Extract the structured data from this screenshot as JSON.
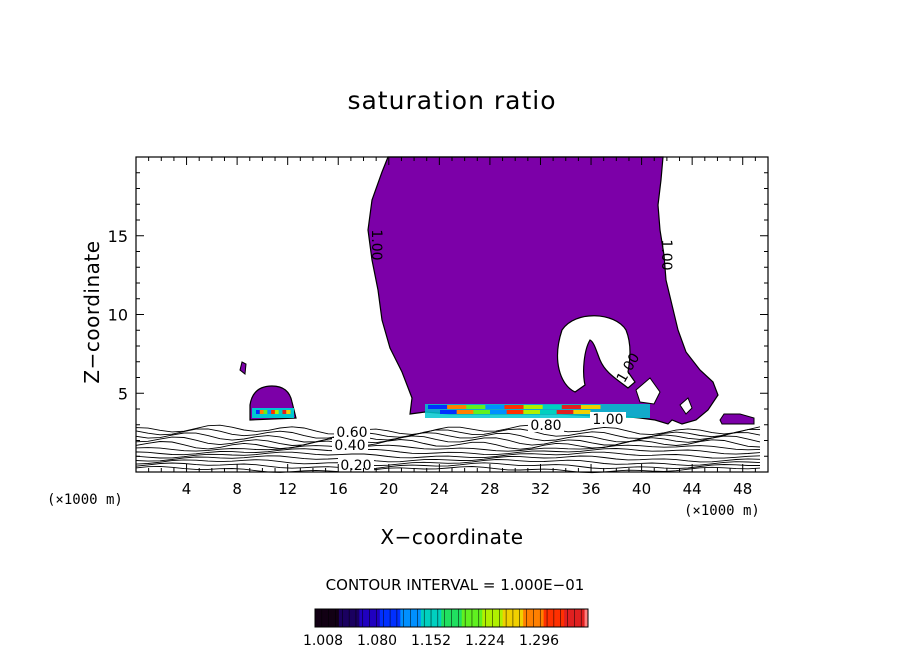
{
  "chart_data": {
    "type": "contour",
    "title": "saturation ratio",
    "xlabel": "X−coordinate",
    "ylabel": "Z−coordinate",
    "x_unit_left": "(×1000 m)",
    "x_unit_right": "(×1000 m)",
    "xlim": [
      0,
      50
    ],
    "ylim": [
      0,
      20
    ],
    "x_ticks": [
      "4",
      "8",
      "12",
      "16",
      "20",
      "24",
      "28",
      "32",
      "36",
      "40",
      "44",
      "48"
    ],
    "y_ticks": [
      "5",
      "10",
      "15"
    ],
    "contour_interval_label": "CONTOUR INTERVAL = 1.000E−01",
    "contour_labels": [
      "1.00",
      "1.00",
      "1.00",
      "1.00",
      "0.80",
      "0.60",
      "0.40",
      "0.20"
    ],
    "colorbar": {
      "ticks": [
        "1.008",
        "1.080",
        "1.152",
        "1.224",
        "1.296"
      ],
      "colors": [
        "#120014",
        "#1a0060",
        "#2000c0",
        "#0030ff",
        "#0090ff",
        "#00d0c0",
        "#20e060",
        "#60f020",
        "#b0f000",
        "#f0d000",
        "#ff8000",
        "#ff3000",
        "#e02020",
        "#ff8080"
      ]
    },
    "fill_color": "#7c00a8",
    "grid": false
  }
}
